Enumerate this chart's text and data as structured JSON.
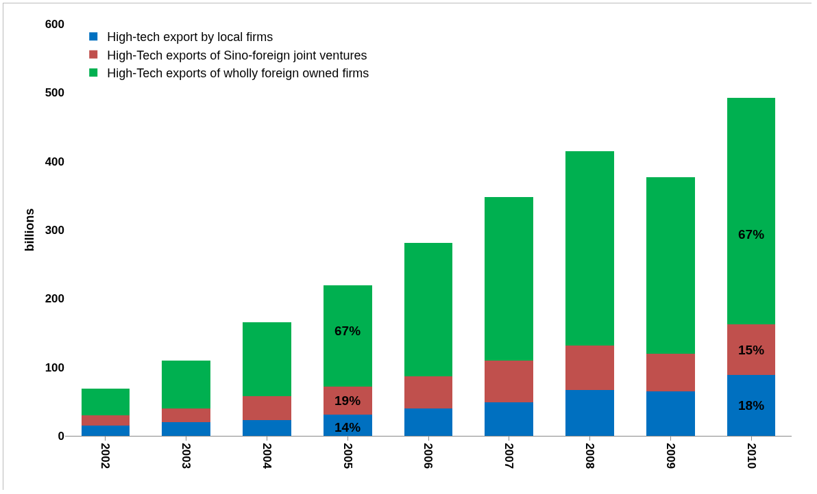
{
  "chart_data": {
    "type": "bar",
    "stacked": true,
    "ylabel": "billions",
    "categories": [
      "2002",
      "2003",
      "2004",
      "2005",
      "2006",
      "2007",
      "2008",
      "2009",
      "2010"
    ],
    "series": [
      {
        "name": "High-tech export by local firms",
        "color": "#0070c0",
        "values": [
          15,
          20,
          23,
          31,
          40,
          49,
          67,
          65,
          89
        ]
      },
      {
        "name": "High-Tech exports of Sino-foreign joint ventures",
        "color": "#c0504d",
        "values": [
          15,
          20,
          35,
          41,
          47,
          61,
          65,
          55,
          73
        ]
      },
      {
        "name": "High-Tech exports of wholly foreign owned firms",
        "color": "#00b050",
        "values": [
          39,
          70,
          107,
          147,
          194,
          238,
          283,
          257,
          330
        ]
      }
    ],
    "annotations": [
      "14%",
      "19%",
      "67%",
      "18%",
      "15%",
      "67%"
    ],
    "ylim": [
      0,
      600
    ],
    "yticks": [
      0,
      100,
      200,
      300,
      400,
      500,
      600
    ],
    "grid": false,
    "legend": "top left"
  }
}
